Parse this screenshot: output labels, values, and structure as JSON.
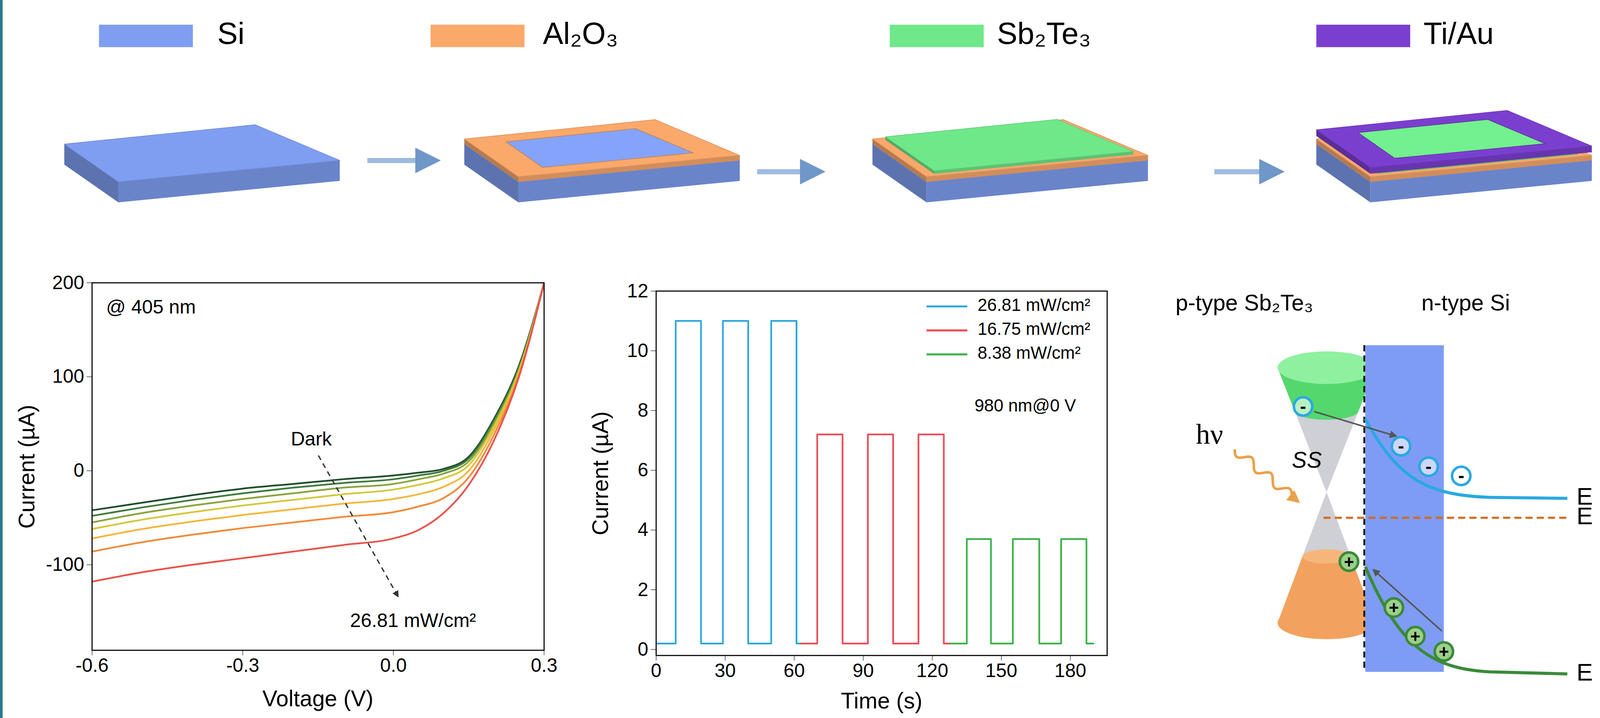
{
  "materials_legend": [
    {
      "label": "Si",
      "color": "#7f9ef2"
    },
    {
      "label": "Al₂O₃",
      "color": "#fba86b"
    },
    {
      "label": "Sb₂Te₃",
      "color": "#6fe88a"
    },
    {
      "label": "Ti/Au",
      "color": "#7b3fd0"
    }
  ],
  "fabrication_steps": [
    [
      "Si"
    ],
    [
      "Si",
      "Al₂O₃"
    ],
    [
      "Si",
      "Al₂O₃",
      "Sb₂Te₃"
    ],
    [
      "Si",
      "Al₂O₃",
      "Sb₂Te₃",
      "Ti/Au"
    ]
  ],
  "chart_data": [
    {
      "type": "line",
      "xlabel": "Voltage (V)",
      "ylabel": "Current (µA)",
      "annotations": [
        "@ 405 nm",
        "Dark",
        "26.81 mW/cm²"
      ],
      "x": [
        -0.6,
        -0.5,
        -0.4,
        -0.3,
        -0.2,
        -0.1,
        0,
        0.05,
        0.1,
        0.15,
        0.2,
        0.25,
        0.3
      ],
      "series": [
        {
          "color": "#1f4d2c",
          "values": [
            -42,
            -34,
            -26,
            -19,
            -14,
            -9,
            -5,
            -2,
            2,
            15,
            55,
            112,
            200
          ]
        },
        {
          "color": "#3d7a3a",
          "values": [
            -48,
            -39,
            -31,
            -24,
            -18,
            -13,
            -9,
            -5,
            0,
            13,
            53,
            110,
            200
          ]
        },
        {
          "color": "#8aa23a",
          "values": [
            -55,
            -45,
            -37,
            -30,
            -24,
            -18,
            -14,
            -9,
            -3,
            10,
            50,
            108,
            200
          ]
        },
        {
          "color": "#d4c83a",
          "values": [
            -62,
            -52,
            -44,
            -37,
            -31,
            -25,
            -20,
            -15,
            -8,
            6,
            47,
            106,
            200
          ]
        },
        {
          "color": "#f4b63e",
          "values": [
            -72,
            -62,
            -54,
            -47,
            -41,
            -35,
            -30,
            -25,
            -17,
            0,
            43,
            104,
            200
          ]
        },
        {
          "color": "#f08a3a",
          "values": [
            -86,
            -76,
            -68,
            -61,
            -55,
            -49,
            -44,
            -38,
            -29,
            -7,
            38,
            102,
            200
          ]
        },
        {
          "color": "#e8524a",
          "values": [
            -118,
            -108,
            -100,
            -93,
            -86,
            -79,
            -72,
            -63,
            -45,
            -15,
            32,
            100,
            200
          ]
        }
      ],
      "xlim": [
        -0.6,
        0.3
      ],
      "ylim": [
        -191,
        200
      ],
      "xticks": [
        -0.6,
        -0.3,
        {
          "value": 0,
          "label": "0.0"
        },
        0.3
      ],
      "yticks": [
        -100,
        0,
        100,
        200
      ]
    },
    {
      "type": "line",
      "xlabel": "Time (s)",
      "ylabel": "Current (µA)",
      "annotations": [
        "980 nm@0 V"
      ],
      "legend": "top-right",
      "series": [
        {
          "name": "26.81 mW/cm²",
          "color": "#2fa8dc",
          "x": [
            0,
            8.5,
            8.5,
            19.5,
            19.5,
            29,
            29,
            40,
            40,
            50,
            50,
            61,
            61,
            63
          ],
          "values": [
            0.2,
            0.2,
            11,
            11,
            0.2,
            0.2,
            11,
            11,
            0.2,
            0.2,
            11,
            11,
            0.2,
            0.2
          ]
        },
        {
          "name": "16.75 mW/cm²",
          "color": "#e8505b",
          "x": [
            63,
            70,
            70,
            81,
            81,
            92,
            92,
            103,
            103,
            114,
            114,
            125,
            125,
            128
          ],
          "values": [
            0.2,
            0.2,
            7.2,
            7.2,
            0.2,
            0.2,
            7.2,
            7.2,
            0.2,
            0.2,
            7.2,
            7.2,
            0.2,
            0.2
          ]
        },
        {
          "name": "8.38 mW/cm²",
          "color": "#3cb44b",
          "x": [
            128,
            135,
            135,
            145.5,
            145.5,
            155,
            155,
            166.5,
            166.5,
            176,
            176,
            187,
            187,
            190
          ],
          "values": [
            0.2,
            0.2,
            3.7,
            3.7,
            0.2,
            0.2,
            3.7,
            3.7,
            0.2,
            0.2,
            3.7,
            3.7,
            0.2,
            0.2
          ]
        }
      ],
      "xlim": [
        0,
        196
      ],
      "ylim": [
        -0.2,
        12
      ],
      "xticks": [
        0,
        30,
        60,
        90,
        120,
        150,
        180
      ],
      "yticks": [
        0,
        2,
        4,
        6,
        8,
        10,
        12
      ]
    }
  ],
  "band_diagram": {
    "left_label": "p-type Sb₂Te₃",
    "right_label": "n-type Si",
    "photon_label": "hν",
    "surface_state_label": "SS",
    "carrier_signs": {
      "electron": "-",
      "hole": "+"
    },
    "level_labels": [
      "E",
      "E",
      "E"
    ]
  }
}
